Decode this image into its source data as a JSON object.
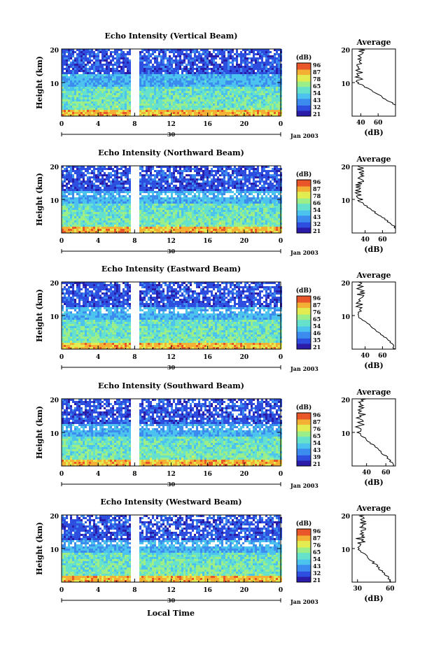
{
  "chart_data": [
    {
      "type": "heatmap",
      "title": "Echo Intensity (Vertical Beam)",
      "ylabel": "Height (km)",
      "x_ticks": [
        "0",
        "4",
        "8",
        "12",
        "16",
        "20",
        "0"
      ],
      "y_ticks": [
        "20",
        "10"
      ],
      "date_label": "30",
      "month_label": "Jan 2003",
      "colorbar": {
        "unit": "(dB)",
        "ticks": [
          "96",
          "87",
          "78",
          "65",
          "54",
          "43",
          "32",
          "21"
        ]
      },
      "profile": {
        "title": "Average",
        "xlabel": "(dB)",
        "x_ticks": [
          "40",
          "60"
        ],
        "y_ticks": [
          "20",
          "10"
        ],
        "xlim": [
          30,
          80
        ],
        "ylim": [
          0,
          20
        ]
      },
      "peak": 93
    },
    {
      "type": "heatmap",
      "title": "Echo Intensity (Northward Beam)",
      "ylabel": "Height (km)",
      "x_ticks": [
        "0",
        "4",
        "8",
        "12",
        "16",
        "20",
        "0"
      ],
      "y_ticks": [
        "20",
        "10"
      ],
      "date_label": "30",
      "month_label": "Jan 2003",
      "colorbar": {
        "unit": "(dB)",
        "ticks": [
          "96",
          "87",
          "78",
          "66",
          "54",
          "43",
          "32",
          "21"
        ]
      },
      "profile": {
        "title": "Average",
        "xlabel": "(dB)",
        "x_ticks": [
          "40",
          "60"
        ],
        "y_ticks": [
          "20",
          "10"
        ],
        "xlim": [
          25,
          75
        ],
        "ylim": [
          0,
          20
        ]
      },
      "peak": 78
    },
    {
      "type": "heatmap",
      "title": "Echo Intensity (Eastward Beam)",
      "ylabel": "Height (km)",
      "x_ticks": [
        "0",
        "4",
        "8",
        "12",
        "16",
        "20",
        "0"
      ],
      "y_ticks": [
        "20",
        "10"
      ],
      "date_label": "30",
      "month_label": "Jan 2003",
      "colorbar": {
        "unit": "(dB)",
        "ticks": [
          "96",
          "87",
          "76",
          "65",
          "54",
          "46",
          "35",
          "21"
        ]
      },
      "profile": {
        "title": "Average",
        "xlabel": "(dB)",
        "x_ticks": [
          "40",
          "60"
        ],
        "y_ticks": [
          "20",
          "10"
        ],
        "xlim": [
          25,
          75
        ],
        "ylim": [
          0,
          20
        ]
      },
      "peak": 74
    },
    {
      "type": "heatmap",
      "title": "Echo Intensity (Southward Beam)",
      "ylabel": "Height (km)",
      "x_ticks": [
        "0",
        "4",
        "8",
        "12",
        "16",
        "20",
        "0"
      ],
      "y_ticks": [
        "20",
        "10"
      ],
      "date_label": "30",
      "month_label": "Jan 2003",
      "colorbar": {
        "unit": "(dB)",
        "ticks": [
          "96",
          "87",
          "76",
          "65",
          "54",
          "43",
          "39",
          "21"
        ]
      },
      "profile": {
        "title": "Average",
        "xlabel": "(dB)",
        "x_ticks": [
          "40",
          "60"
        ],
        "y_ticks": [
          "20",
          "10"
        ],
        "xlim": [
          25,
          70
        ],
        "ylim": [
          0,
          20
        ]
      },
      "peak": 68
    },
    {
      "type": "heatmap",
      "title": "Echo Intensity (Westward Beam)",
      "ylabel": "Height (km)",
      "x_ticks": [
        "0",
        "4",
        "8",
        "12",
        "16",
        "20",
        "0"
      ],
      "y_ticks": [
        "20",
        "10"
      ],
      "date_label": "30",
      "month_label": "Jan 2003",
      "colorbar": {
        "unit": "(dB)",
        "ticks": [
          "96",
          "87",
          "76",
          "65",
          "54",
          "43",
          "32",
          "21"
        ]
      },
      "profile": {
        "title": "Average",
        "xlabel": "(dB)",
        "x_ticks": [
          "30",
          "60"
        ],
        "y_ticks": [
          "20",
          "10"
        ],
        "xlim": [
          25,
          65
        ],
        "ylim": [
          0,
          20
        ]
      },
      "peak": 61
    }
  ],
  "xlabel": "Local Time",
  "colormap": [
    "#2a1ca8",
    "#2e4ee0",
    "#3c8cf0",
    "#4cc2ee",
    "#66e2cc",
    "#9cee88",
    "#e2ec50",
    "#f4b034",
    "#e8562a"
  ]
}
